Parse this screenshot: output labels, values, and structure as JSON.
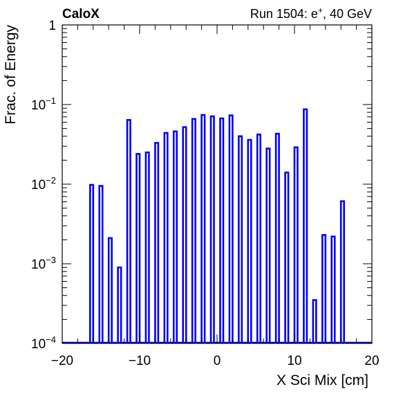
{
  "header": {
    "left_label": "CaloX",
    "right_label": "Run 1504: e",
    "right_label_sup": "+",
    "right_label_tail": ", 40 GeV"
  },
  "colors": {
    "bars": "#0000ff",
    "axes": "#000000",
    "background": "#ffffff"
  },
  "chart_data": {
    "type": "bar",
    "subtype": "histogram",
    "title": "",
    "xlabel": "X Sci Mix [cm]",
    "ylabel": "Frac. of Energy",
    "xlim": [
      -20,
      20
    ],
    "ylim": [
      0.0001,
      1
    ],
    "yscale": "log",
    "grid": false,
    "bin_width": 0.4,
    "x_ticks": [
      "−20",
      "−10",
      "0",
      "10",
      "20"
    ],
    "y_ticks": [
      {
        "base": "10",
        "exp": "−4"
      },
      {
        "base": "10",
        "exp": "−3"
      },
      {
        "base": "10",
        "exp": "−2"
      },
      {
        "base": "10",
        "exp": "−1"
      },
      {
        "base": "1",
        "exp": ""
      }
    ],
    "x": [
      -16.2,
      -15.0,
      -13.8,
      -12.6,
      -11.4,
      -10.2,
      -9.0,
      -7.8,
      -6.6,
      -5.4,
      -4.2,
      -3.0,
      -1.8,
      -0.6,
      0.6,
      1.8,
      3.0,
      4.2,
      5.4,
      6.6,
      7.8,
      9.0,
      10.2,
      11.4,
      12.6,
      13.8,
      15.0,
      16.2
    ],
    "values": [
      0.0098,
      0.0095,
      0.0021,
      0.0009,
      0.064,
      0.024,
      0.025,
      0.033,
      0.044,
      0.046,
      0.052,
      0.066,
      0.074,
      0.071,
      0.067,
      0.073,
      0.04,
      0.036,
      0.042,
      0.028,
      0.043,
      0.014,
      0.029,
      0.087,
      0.00035,
      0.0023,
      0.0022,
      0.0061
    ]
  }
}
